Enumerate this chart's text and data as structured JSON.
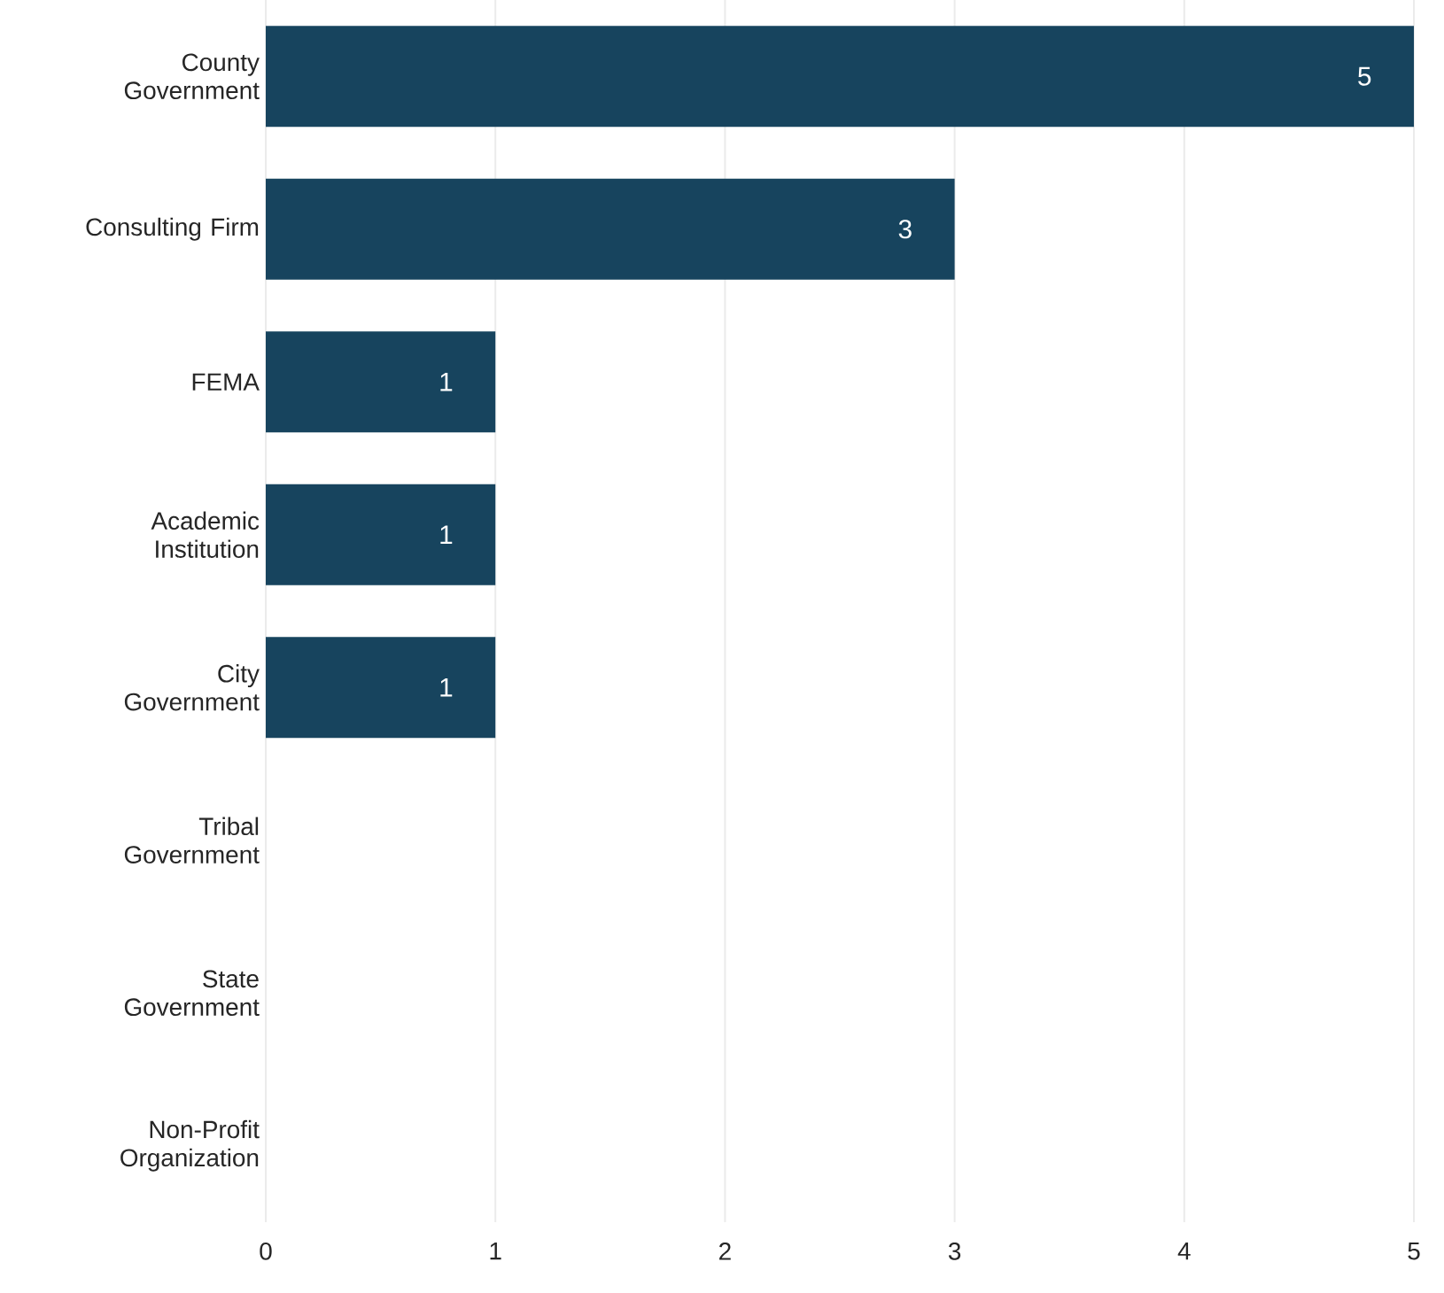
{
  "chart_data": {
    "type": "bar",
    "orientation": "horizontal",
    "categories": [
      "County Government",
      "Consulting Firm",
      "FEMA",
      "Academic Institution",
      "City Government",
      "Tribal Government",
      "State Government",
      "Non-Profit Organization"
    ],
    "values": [
      5,
      3,
      1,
      1,
      1,
      0,
      0,
      0
    ],
    "value_labels": [
      "5",
      "3",
      "1",
      "1",
      "1",
      null,
      null,
      null
    ],
    "color": "#17445e",
    "xlim": [
      0,
      5
    ],
    "xticks": [
      0,
      1,
      2,
      3,
      4,
      5
    ],
    "grid": "x"
  }
}
